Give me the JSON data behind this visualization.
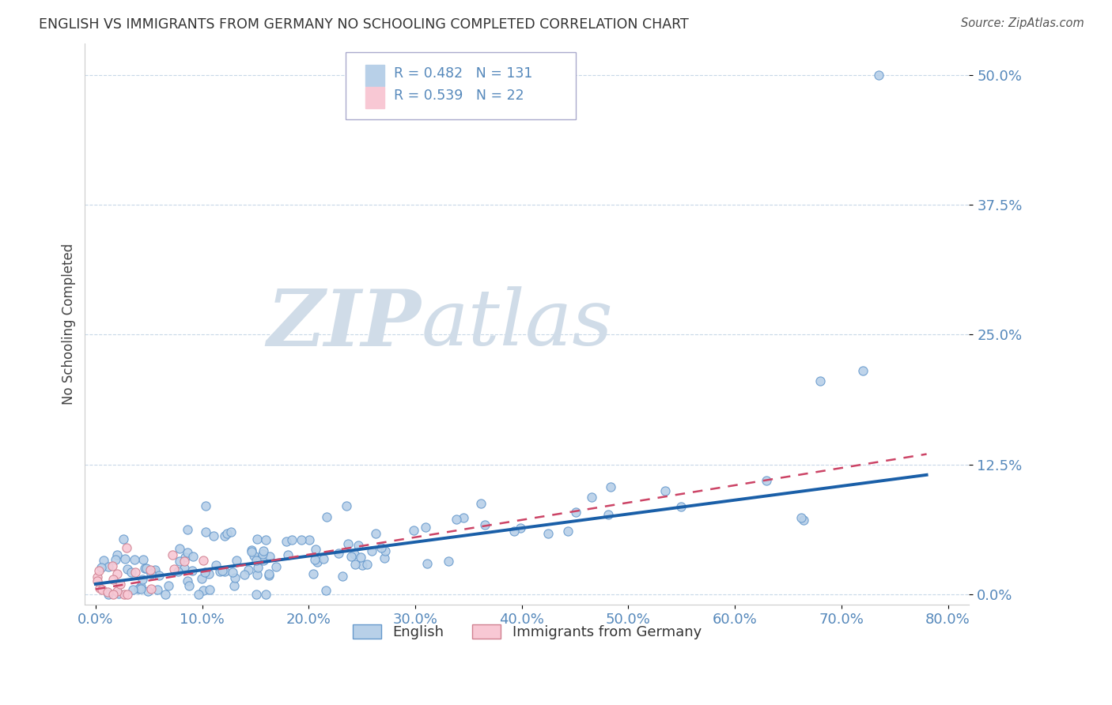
{
  "title": "ENGLISH VS IMMIGRANTS FROM GERMANY NO SCHOOLING COMPLETED CORRELATION CHART",
  "source_text": "Source: ZipAtlas.com",
  "ylabel": "No Schooling Completed",
  "r1": 0.482,
  "n1": 131,
  "r2": 0.539,
  "n2": 22,
  "legend_label1": "English",
  "legend_label2": "Immigrants from Germany",
  "xlim": [
    -0.01,
    0.82
  ],
  "ylim": [
    -0.01,
    0.53
  ],
  "yticks": [
    0.0,
    0.125,
    0.25,
    0.375,
    0.5
  ],
  "ytick_labels": [
    "0.0%",
    "12.5%",
    "25.0%",
    "37.5%",
    "50.0%"
  ],
  "xticks": [
    0.0,
    0.1,
    0.2,
    0.3,
    0.4,
    0.5,
    0.6,
    0.7,
    0.8
  ],
  "xtick_labels": [
    "0.0%",
    "10.0%",
    "20.0%",
    "30.0%",
    "40.0%",
    "50.0%",
    "60.0%",
    "70.0%",
    "80.0%"
  ],
  "blue_marker_color": "#b8d0e8",
  "blue_edge_color": "#6699cc",
  "blue_line_color": "#1a5fa8",
  "pink_marker_color": "#f8c8d4",
  "pink_edge_color": "#d08090",
  "pink_line_color": "#cc4466",
  "title_color": "#333333",
  "tick_color": "#5588bb",
  "grid_color": "#c8d8e8",
  "watermark_zip_color": "#d0dce8",
  "watermark_atlas_color": "#d0dce8",
  "source_color": "#555555"
}
